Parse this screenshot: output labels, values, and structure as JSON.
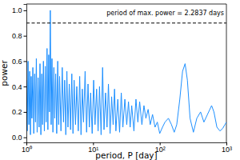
{
  "chart_data": {
    "type": "line",
    "x_label": "period, P [day]",
    "y_label": "power",
    "annotation": "period of max. power = 2.2837 days",
    "log": "x",
    "color": "#1e90ff",
    "reference_line": 0.9,
    "xlim": [
      1,
      1000
    ],
    "xticks": [
      {
        "value": 1,
        "label": "10⁰"
      },
      {
        "value": 10,
        "label": "10¹"
      },
      {
        "value": 100,
        "label": "10²"
      },
      {
        "value": 1000,
        "label": "10³"
      }
    ],
    "ylim": [
      -0.04,
      1.05
    ],
    "yticks": [
      {
        "value": 0,
        "label": "0.0"
      },
      0.2,
      0.4,
      0.6,
      0.8,
      {
        "value": 1,
        "label": "1.0"
      }
    ],
    "x": [
      1.0,
      1.03,
      1.06,
      1.09,
      1.12,
      1.15,
      1.18,
      1.21,
      1.25,
      1.29,
      1.33,
      1.37,
      1.41,
      1.45,
      1.5,
      1.55,
      1.6,
      1.65,
      1.7,
      1.75,
      1.8,
      1.86,
      1.92,
      1.98,
      2.04,
      2.1,
      2.16,
      2.22,
      2.2837,
      2.35,
      2.42,
      2.5,
      2.58,
      2.66,
      2.75,
      2.85,
      2.95,
      3.05,
      3.15,
      3.3,
      3.45,
      3.6,
      3.75,
      3.9,
      4.05,
      4.2,
      4.4,
      4.6,
      4.8,
      5.0,
      5.2,
      5.45,
      5.7,
      6.0,
      6.3,
      6.6,
      6.9,
      7.2,
      7.6,
      8.0,
      8.4,
      8.8,
      9.2,
      9.7,
      10.2,
      10.7,
      11.3,
      11.9,
      12.5,
      13.2,
      13.9,
      14.6,
      15.4,
      16.2,
      17.0,
      18,
      19,
      20,
      21,
      22,
      23.5,
      25,
      26.5,
      28,
      30,
      32,
      34,
      36,
      38,
      41,
      44,
      47,
      50,
      54,
      58,
      62,
      67,
      72,
      78,
      85,
      92,
      100,
      110,
      120,
      135,
      150,
      165,
      180,
      200,
      220,
      240,
      260,
      285,
      320,
      360,
      410,
      460,
      520,
      600,
      650,
      720,
      800,
      880,
      950,
      1000
    ],
    "values": [
      0.45,
      0.05,
      0.6,
      0.1,
      0.52,
      0.02,
      0.48,
      0.15,
      0.55,
      0.03,
      0.5,
      0.12,
      0.62,
      0.04,
      0.47,
      0.08,
      0.58,
      0.02,
      0.5,
      0.1,
      0.6,
      0.05,
      0.56,
      0.12,
      0.7,
      0.06,
      0.65,
      0.2,
      1.0,
      0.1,
      0.62,
      0.04,
      0.55,
      0.15,
      0.5,
      0.03,
      0.6,
      0.1,
      0.48,
      0.05,
      0.55,
      0.12,
      0.45,
      0.02,
      0.52,
      0.08,
      0.42,
      0.06,
      0.5,
      0.03,
      0.45,
      0.1,
      0.4,
      0.05,
      0.48,
      0.02,
      0.38,
      0.12,
      0.52,
      0.04,
      0.42,
      0.08,
      0.35,
      0.03,
      0.45,
      0.1,
      0.38,
      0.05,
      0.4,
      0.02,
      0.55,
      0.06,
      0.35,
      0.08,
      0.42,
      0.03,
      0.32,
      0.1,
      0.38,
      0.05,
      0.3,
      0.04,
      0.35,
      0.08,
      0.3,
      0.1,
      0.28,
      0.08,
      0.25,
      0.05,
      0.3,
      0.12,
      0.28,
      0.1,
      0.25,
      0.15,
      0.22,
      0.1,
      0.18,
      0.08,
      0.12,
      0.03,
      0.08,
      0.12,
      0.15,
      0.1,
      0.04,
      0.1,
      0.3,
      0.52,
      0.58,
      0.45,
      0.15,
      0.04,
      0.15,
      0.2,
      0.12,
      0.18,
      0.25,
      0.2,
      0.08,
      0.05,
      0.07,
      0.1,
      0.12
    ]
  }
}
